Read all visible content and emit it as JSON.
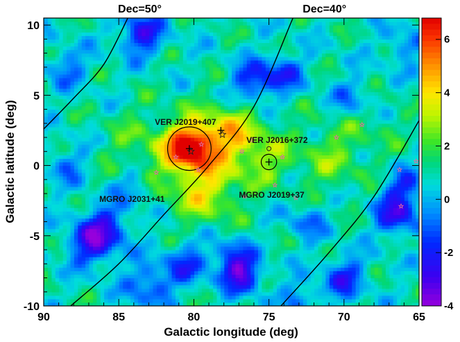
{
  "chart_data": {
    "type": "heatmap",
    "xlabel": "Galactic longitude (deg)",
    "ylabel": "Galactic latitude (deg)",
    "xlim": [
      90,
      65
    ],
    "ylim": [
      -10,
      10.5
    ],
    "x_ticks": [
      "90",
      "85",
      "80",
      "75",
      "70",
      "65"
    ],
    "y_ticks": [
      "10",
      "5",
      "0",
      "-5",
      "-10"
    ],
    "x_tick_values": [
      90,
      85,
      80,
      75,
      70,
      65
    ],
    "y_tick_values": [
      10,
      5,
      0,
      -5,
      -10
    ],
    "colorbar": {
      "range": [
        -4,
        6.8
      ],
      "ticks": [
        "6",
        "4",
        "2",
        "0",
        "-2",
        "-4"
      ],
      "tick_values": [
        6,
        4,
        2,
        0,
        -2,
        -4
      ],
      "colormap": "rainbow"
    },
    "background_level": 0.8,
    "hotspots": [
      {
        "l": 80.3,
        "b": 1.3,
        "amp": 5.2,
        "sigma": 1.0
      },
      {
        "l": 79.5,
        "b": 0.5,
        "amp": 2.2,
        "sigma": 2.4
      },
      {
        "l": 78.0,
        "b": 2.5,
        "amp": 1.5,
        "sigma": 1.2
      },
      {
        "l": 75.0,
        "b": 0.3,
        "amp": 1.0,
        "sigma": 1.0
      },
      {
        "l": 71.0,
        "b": 0.6,
        "amp": 1.4,
        "sigma": 1.8
      },
      {
        "l": 76.5,
        "b": 1.8,
        "amp": 1.2,
        "sigma": 1.5
      },
      {
        "l": 79.3,
        "b": -2.2,
        "amp": 1.5,
        "sigma": 1.3
      },
      {
        "l": 84.0,
        "b": 1.5,
        "amp": 0.8,
        "sigma": 1.8
      },
      {
        "l": 68.0,
        "b": 3.0,
        "amp": 0.6,
        "sigma": 1.6
      }
    ],
    "coldspots": [
      {
        "l": 83.5,
        "b": 9.4,
        "amp": 3.2,
        "sigma": 1.0
      },
      {
        "l": 76.0,
        "b": 6.0,
        "amp": 2.8,
        "sigma": 1.0
      },
      {
        "l": 74.0,
        "b": 6.6,
        "amp": 2.2,
        "sigma": 0.9
      },
      {
        "l": 86.8,
        "b": -5.5,
        "amp": 3.2,
        "sigma": 1.1
      },
      {
        "l": 85.8,
        "b": -4.2,
        "amp": 2.2,
        "sigma": 1.1
      },
      {
        "l": 76.8,
        "b": -7.8,
        "amp": 3.5,
        "sigma": 0.9
      },
      {
        "l": 77.5,
        "b": -6.5,
        "amp": 2.2,
        "sigma": 0.9
      },
      {
        "l": 80.5,
        "b": -7.0,
        "amp": 2.2,
        "sigma": 1.0
      },
      {
        "l": 66.5,
        "b": -3.5,
        "amp": 3.2,
        "sigma": 1.0
      },
      {
        "l": 66.0,
        "b": -1.5,
        "amp": 2.2,
        "sigma": 0.9
      },
      {
        "l": 70.0,
        "b": -8.0,
        "amp": 2.6,
        "sigma": 1.0
      },
      {
        "l": 83.0,
        "b": -8.5,
        "amp": 2.2,
        "sigma": 1.1
      },
      {
        "l": 72.5,
        "b": -4.0,
        "amp": 1.6,
        "sigma": 0.9
      },
      {
        "l": 88.5,
        "b": 7.0,
        "amp": 1.6,
        "sigma": 1.0
      },
      {
        "l": 69.5,
        "b": 4.8,
        "amp": 1.5,
        "sigma": 1.0
      },
      {
        "l": 84.0,
        "b": -1.5,
        "amp": 1.5,
        "sigma": 0.9
      },
      {
        "l": 88.5,
        "b": 0.0,
        "amp": 1.4,
        "sigma": 1.0
      },
      {
        "l": 73.0,
        "b": -9.5,
        "amp": 1.8,
        "sigma": 0.8
      },
      {
        "l": 66.0,
        "b": 8.5,
        "amp": 1.4,
        "sigma": 1.0
      }
    ],
    "dec_lines": [
      {
        "label": "Dec=50°",
        "points": [
          [
            90,
            2.6
          ],
          [
            88,
            4.8
          ],
          [
            86,
            7.2
          ],
          [
            84.4,
            10.5
          ]
        ]
      },
      {
        "label": "",
        "points": [
          [
            88.2,
            -10
          ],
          [
            85,
            -7.0
          ],
          [
            82,
            -3.5
          ],
          [
            79,
            0.0
          ],
          [
            76,
            4.2
          ],
          [
            73.4,
            10.5
          ]
        ]
      },
      {
        "label": "Dec=40°",
        "points": [
          [
            74.2,
            -10
          ],
          [
            71,
            -6.2
          ],
          [
            68,
            -2.2
          ],
          [
            65,
            3.2
          ]
        ]
      }
    ],
    "dec_label_positions": [
      {
        "l": 83.6,
        "text": "Dec=50°"
      },
      {
        "l": 71.3,
        "text": "Dec=40°"
      }
    ],
    "circles": [
      {
        "l": 80.3,
        "b": 1.2,
        "r": 1.55
      },
      {
        "l": 75.0,
        "b": 0.25,
        "r": 0.55
      }
    ],
    "markers": [
      {
        "l": 80.3,
        "b": 1.2,
        "kind": "plus"
      },
      {
        "l": 75.0,
        "b": 0.25,
        "kind": "plus"
      },
      {
        "l": 78.2,
        "b": 2.5,
        "kind": "plus"
      },
      {
        "l": 80.2,
        "b": 1.0,
        "kind": "star"
      },
      {
        "l": 78.1,
        "b": 2.2,
        "kind": "star"
      },
      {
        "l": 75.0,
        "b": 1.2,
        "kind": "circle-sm"
      },
      {
        "l": 79.5,
        "b": 1.5,
        "kind": "star-pink"
      },
      {
        "l": 81.2,
        "b": 0.6,
        "kind": "star-pink"
      },
      {
        "l": 79.7,
        "b": -0.3,
        "kind": "star-pink"
      },
      {
        "l": 76.8,
        "b": 1.0,
        "kind": "star-pink"
      },
      {
        "l": 76.1,
        "b": 1.8,
        "kind": "star-pink"
      },
      {
        "l": 74.1,
        "b": 0.6,
        "kind": "star-pink"
      },
      {
        "l": 74.6,
        "b": -1.4,
        "kind": "star-pink"
      },
      {
        "l": 73.2,
        "b": -2.3,
        "kind": "star-pink"
      },
      {
        "l": 76.6,
        "b": -2.2,
        "kind": "star-pink"
      },
      {
        "l": 70.5,
        "b": 2.0,
        "kind": "star-pink"
      },
      {
        "l": 68.8,
        "b": 2.9,
        "kind": "star-pink"
      },
      {
        "l": 66.3,
        "b": -0.3,
        "kind": "star-pink"
      },
      {
        "l": 66.2,
        "b": -2.9,
        "kind": "star-pink"
      },
      {
        "l": 65.2,
        "b": 0.3,
        "kind": "star-pink"
      },
      {
        "l": 82.5,
        "b": -0.5,
        "kind": "star-pink"
      }
    ],
    "source_labels": [
      {
        "text": "VER J2019+407",
        "l": 82.6,
        "b": 2.9
      },
      {
        "text": "VER J2016+372",
        "l": 76.5,
        "b": 1.6
      },
      {
        "text": "MGRO J2031+41",
        "l": 86.3,
        "b": -2.6
      },
      {
        "text": "MGRO J2019+37",
        "l": 77.0,
        "b": -2.3
      }
    ]
  }
}
